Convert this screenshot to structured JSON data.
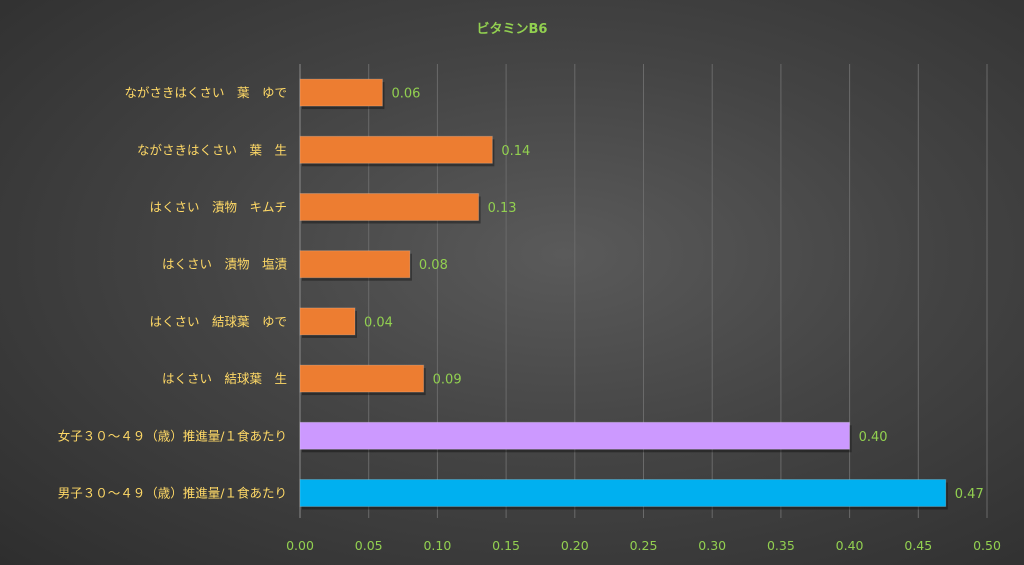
{
  "chart_data": {
    "type": "bar",
    "orientation": "horizontal",
    "title": "ビタミンB6",
    "categories": [
      "ながさきはくさい　葉　ゆで",
      "ながさきはくさい　葉　生",
      "はくさい　漬物　キムチ",
      "はくさい　漬物　塩漬",
      "はくさい　結球葉　ゆで",
      "はくさい　結球葉　生",
      "女子３０～４９（歳）推進量/１食あたり",
      "男子３０～４９（歳）推進量/１食あたり"
    ],
    "values": [
      0.06,
      0.14,
      0.13,
      0.08,
      0.04,
      0.09,
      0.4,
      0.47
    ],
    "value_labels": [
      "0.06",
      "0.14",
      "0.13",
      "0.08",
      "0.04",
      "0.09",
      "0.40",
      "0.47"
    ],
    "bar_colors": [
      "#ed7d31",
      "#ed7d31",
      "#ed7d31",
      "#ed7d31",
      "#ed7d31",
      "#ed7d31",
      "#cc99ff",
      "#00b0f0"
    ],
    "xlim": [
      0,
      0.5
    ],
    "xticks": [
      "0.00",
      "0.05",
      "0.10",
      "0.15",
      "0.20",
      "0.25",
      "0.30",
      "0.35",
      "0.40",
      "0.45",
      "0.50"
    ],
    "grid": true,
    "legend": "none",
    "colors": {
      "title": "#92d050",
      "category_text": "#ffd966",
      "value_text": "#92d050",
      "tick_text": "#92d050"
    }
  }
}
